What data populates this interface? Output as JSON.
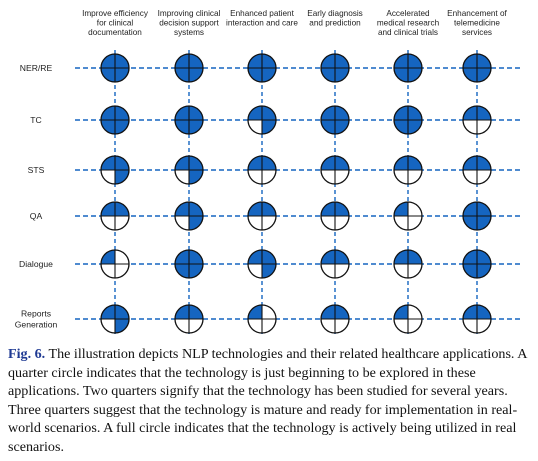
{
  "colors": {
    "fill": "#1565c0",
    "line": "#1565c0",
    "outline": "#111111"
  },
  "columns": [
    [
      "Improve efficiency",
      "for clinical",
      "documentation"
    ],
    [
      "Improving clinical",
      "decision support",
      "systems"
    ],
    [
      "Enhanced patient",
      "interaction and care"
    ],
    [
      "Early diagnosis",
      "and prediction"
    ],
    [
      "Accelerated",
      "medical research",
      "and clinical trials"
    ],
    [
      "Enhancement of",
      "telemedicine",
      "services"
    ]
  ],
  "rows": [
    {
      "label": [
        "NER/RE"
      ],
      "levels": [
        4,
        4,
        4,
        4,
        4,
        4
      ]
    },
    {
      "label": [
        "TC"
      ],
      "levels": [
        4,
        4,
        3,
        4,
        4,
        2
      ]
    },
    {
      "label": [
        "STS"
      ],
      "levels": [
        3,
        3,
        2,
        2,
        2,
        2
      ]
    },
    {
      "label": [
        "QA"
      ],
      "levels": [
        2,
        3,
        2,
        2,
        1,
        4
      ]
    },
    {
      "label": [
        "Dialogue"
      ],
      "levels": [
        1,
        4,
        3,
        2,
        2,
        4
      ]
    },
    {
      "label": [
        "Reports",
        "Generation"
      ],
      "levels": [
        3,
        2,
        1,
        2,
        1,
        2
      ]
    }
  ],
  "caption": {
    "label": "Fig. 6.",
    "text": " The illustration depicts NLP technologies and their related healthcare applications. A quarter circle indicates that the technology is just beginning to be explored in these applications. Two quarters signify that the technology has been studied for several years. Three quarters suggest that the technology is mature and ready for implementation in real-world scenarios. A full circle indicates that the technology is actively being utilized in real scenarios."
  }
}
